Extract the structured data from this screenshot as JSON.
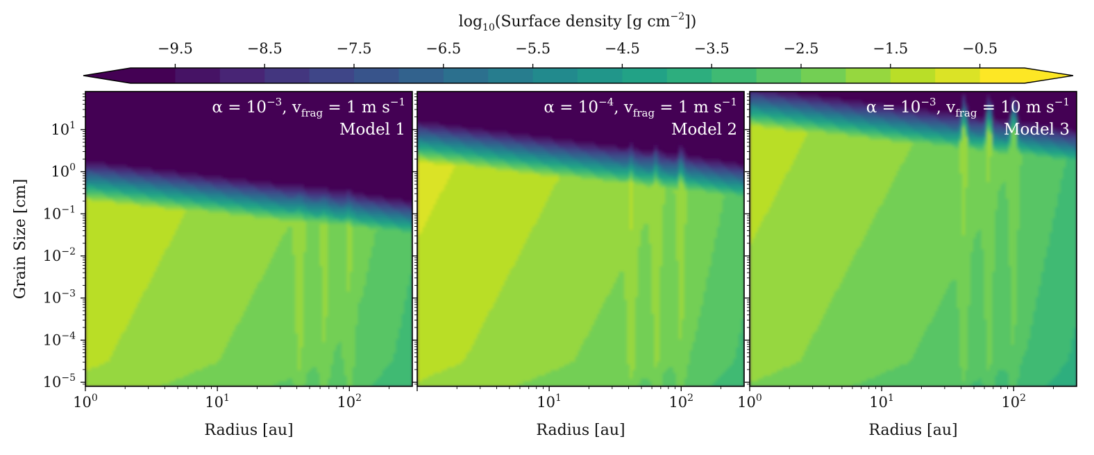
{
  "colorbar": {
    "label_prefix": "log",
    "label_sub": "10",
    "label_main": "(Surface density [g cm",
    "label_sup": "−2",
    "label_suffix": "])",
    "ticks": [
      "−9.5",
      "−8.5",
      "−7.5",
      "−6.5",
      "−5.5",
      "−4.5",
      "−3.5",
      "−2.5",
      "−1.5",
      "−0.5"
    ],
    "tick_values": [
      -9.5,
      -8.5,
      -7.5,
      -6.5,
      -5.5,
      -4.5,
      -3.5,
      -2.5,
      -1.5,
      -0.5
    ],
    "range": [
      -10.0,
      0.0
    ],
    "levels": 20,
    "extend": "both",
    "colormap": "viridis",
    "placement": "top"
  },
  "chart_data": [
    {
      "type": "heatmap",
      "title_alpha": "α = 10",
      "title_alpha_exp": "−3",
      "title_v": ", v",
      "title_v_sub": "frag",
      "title_v_val": " = 1 m s",
      "title_v_exp": "−1",
      "model": "Model 1",
      "xlabel": "Radius [au]",
      "ylabel": "Grain Size [cm]",
      "x_scale": "log",
      "y_scale": "log",
      "xlim": [
        1,
        300
      ],
      "ylim": [
        8e-06,
        80
      ],
      "x_ticks": [
        {
          "base": "10",
          "exp": "0"
        },
        {
          "base": "10",
          "exp": "1"
        },
        {
          "base": "10",
          "exp": "2"
        }
      ],
      "y_ticks": [
        {
          "base": "10",
          "exp": "−5"
        },
        {
          "base": "10",
          "exp": "−4"
        },
        {
          "base": "10",
          "exp": "−3"
        },
        {
          "base": "10",
          "exp": "−2"
        },
        {
          "base": "10",
          "exp": "−1"
        },
        {
          "base": "10",
          "exp": "0"
        },
        {
          "base": "10",
          "exp": "1"
        }
      ],
      "frag_limit_at_1au_cm": 0.2,
      "frag_limit_slope": -0.3,
      "peak_value": -1.0,
      "ring_radii_au": [
        42,
        65,
        100
      ],
      "ring_max_size_cm": 0.06
    },
    {
      "type": "heatmap",
      "title_alpha": "α = 10",
      "title_alpha_exp": "−4",
      "title_v": ", v",
      "title_v_sub": "frag",
      "title_v_val": " = 1 m s",
      "title_v_exp": "−1",
      "model": "Model 2",
      "xlabel": "Radius [au]",
      "ylabel": "",
      "x_scale": "log",
      "y_scale": "log",
      "xlim": [
        1,
        300
      ],
      "ylim": [
        8e-06,
        80
      ],
      "x_ticks": [
        {
          "base": "10",
          "exp": "1"
        },
        {
          "base": "10",
          "exp": "2"
        }
      ],
      "frag_limit_at_1au_cm": 1.7,
      "frag_limit_slope": -0.33,
      "peak_value": -0.8,
      "ring_radii_au": [
        42,
        65,
        100
      ],
      "ring_max_size_cm": 0.6
    },
    {
      "type": "heatmap",
      "title_alpha": "α = 10",
      "title_alpha_exp": "−3",
      "title_v": ", v",
      "title_v_sub": "frag",
      "title_v_val": " = 10 m s",
      "title_v_exp": "−1",
      "model": "Model 3",
      "xlabel": "Radius [au]",
      "ylabel": "",
      "x_scale": "log",
      "y_scale": "log",
      "xlim": [
        1,
        300
      ],
      "ylim": [
        8e-06,
        80
      ],
      "x_ticks": [
        {
          "base": "10",
          "exp": "0"
        },
        {
          "base": "10",
          "exp": "1"
        },
        {
          "base": "10",
          "exp": "2"
        }
      ],
      "frag_limit_at_1au_cm": 12,
      "frag_limit_slope": -0.33,
      "peak_value": -1.2,
      "ring_radii_au": [
        42,
        65,
        100
      ],
      "ring_max_size_cm": 10
    }
  ]
}
